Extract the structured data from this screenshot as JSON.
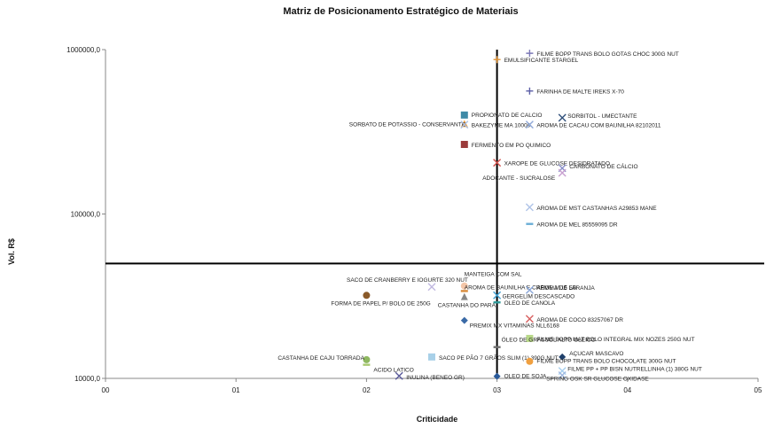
{
  "chart_data": {
    "type": "scatter",
    "title": "Matriz de  Posicionamento  Estratégico de Materiais",
    "xlabel": "Criticidade",
    "ylabel": "Vol. R$",
    "xlim": [
      0,
      5
    ],
    "ylim": [
      10000,
      1000000
    ],
    "y_scale": "log",
    "grid": false,
    "x_ticks": [
      "00",
      "01",
      "02",
      "03",
      "04",
      "05"
    ],
    "y_ticks": [
      "10000,0",
      "100000,0",
      "1000000,0"
    ],
    "quadrant_lines": {
      "x": 3.0,
      "y": 50000
    },
    "points": [
      {
        "label": "FILME BOPP TRANS BOLO GOTAS CHOC 300G NUT",
        "x": 3.25,
        "y": 950000,
        "marker": "plus",
        "color": "#7b78b6"
      },
      {
        "label": "EMULSIFICANTE  STARGEL",
        "x": 3.0,
        "y": 870000,
        "marker": "plus",
        "color": "#e3912f"
      },
      {
        "label": "FARINHA DE MALTE IREKS X-70",
        "x": 3.25,
        "y": 560000,
        "marker": "plus",
        "color": "#5b5ea6"
      },
      {
        "label": "PROPIONATO DE CALCIO",
        "x": 2.75,
        "y": 400000,
        "marker": "square",
        "color": "#3f8aa6"
      },
      {
        "label": "SORBITOL - UMECTANTE",
        "x": 3.5,
        "y": 385000,
        "marker": "x",
        "color": "#2f4f7a"
      },
      {
        "label": "SORBATO DE POTASSIO - CONSERVANTE",
        "x": 2.75,
        "y": 355000,
        "marker": "triangle",
        "color": "#f0a040"
      },
      {
        "label": "BAKEZYME MA 10000",
        "x": 2.75,
        "y": 350000,
        "marker": "x",
        "color": "#a9bde0"
      },
      {
        "label": "AROMA DE CACAU COM BAUNILHA  82102011",
        "x": 3.25,
        "y": 350000,
        "marker": "x",
        "color": "#8fa8d8"
      },
      {
        "label": "FERMENTO EM PO QUIMICO",
        "x": 2.75,
        "y": 265000,
        "marker": "square",
        "color": "#9b3b3b"
      },
      {
        "label": "XAROPE DE GLUCOSE DESIDRATADO",
        "x": 3.0,
        "y": 205000,
        "marker": "x",
        "color": "#d0504a"
      },
      {
        "label": "CARBONATO DE CÁLCIO",
        "x": 3.5,
        "y": 190000,
        "marker": "x",
        "color": "#8a8fc8"
      },
      {
        "label": "ADOÇANTE - SUCRALOSE",
        "x": 3.5,
        "y": 178000,
        "marker": "x",
        "color": "#c8a0d0"
      },
      {
        "label": "AROMA DE MST CASTANHAS A29853 MANE",
        "x": 3.25,
        "y": 110000,
        "marker": "x",
        "color": "#b0c4e8"
      },
      {
        "label": "AROMA DE MEL 85559095 DR",
        "x": 3.25,
        "y": 87000,
        "marker": "dash",
        "color": "#6aaed6"
      },
      {
        "label": "SACO DE CRANBERRY E IOGURTE 320 NUT",
        "x": 2.5,
        "y": 36000,
        "marker": "x",
        "color": "#c0b8e0"
      },
      {
        "label": "MANTEIGA  COM SAL",
        "x": 2.75,
        "y": 36500,
        "marker": "circle",
        "color": "#f4c6a8"
      },
      {
        "label": "AROMA DE BAUNILHA  E CREME 1615 SB",
        "x": 2.75,
        "y": 34000,
        "marker": "dash",
        "color": "#d88a3a"
      },
      {
        "label": "AROMA DE LARANJA",
        "x": 3.25,
        "y": 34500,
        "marker": "x",
        "color": "#8aa6d8"
      },
      {
        "label": "FORMA DE PAPEL P/ BOLO DE 250G",
        "x": 2.0,
        "y": 32000,
        "marker": "circle",
        "color": "#8a5a2a"
      },
      {
        "label": "GERGELIM DESCASCADO",
        "x": 3.0,
        "y": 32000,
        "marker": "x",
        "color": "#3f9fd0"
      },
      {
        "label": "CASTANHA DO PARÁ",
        "x": 2.75,
        "y": 31500,
        "marker": "triangle",
        "color": "#888888"
      },
      {
        "label": "OLEO DE CANOLA",
        "x": 3.0,
        "y": 29000,
        "marker": "dash",
        "color": "#2f9a9a"
      },
      {
        "label": "AROMA DE COCO 83257067 DR",
        "x": 3.25,
        "y": 23000,
        "marker": "x",
        "color": "#d86060"
      },
      {
        "label": "PREMIX MX VITAMINAS  NLL6168",
        "x": 2.75,
        "y": 22500,
        "marker": "diamond",
        "color": "#3a6aa6"
      },
      {
        "label": "FILME BOPP MAT BOLO INTEGRAL MIX NOZES 250G NUT",
        "x": 3.25,
        "y": 17500,
        "marker": "square",
        "color": "#b8d888"
      },
      {
        "label": "ÓLEO DE GRASSOL ALTO OLEICO",
        "x": 3.0,
        "y": 15500,
        "marker": "dash",
        "color": "#707070"
      },
      {
        "label": "AÇUCAR MASCAVO",
        "x": 3.5,
        "y": 13500,
        "marker": "diamond",
        "color": "#1f3f6a"
      },
      {
        "label": "SACO PE PÃO 7 GRÃOS SLIM (1) 390G NUT",
        "x": 2.5,
        "y": 13500,
        "marker": "square",
        "color": "#a8d0e8"
      },
      {
        "label": "CASTANHA DE CAJU TORRADA",
        "x": 2.0,
        "y": 13000,
        "marker": "circle",
        "color": "#8fb860"
      },
      {
        "label": "FILME BOPP TRANS BOLO CHOCOLATE 300G NUT",
        "x": 3.25,
        "y": 12700,
        "marker": "circle",
        "color": "#f0a040"
      },
      {
        "label": "ACIDO LATICO",
        "x": 2.0,
        "y": 12100,
        "marker": "dash",
        "color": "#a8c870"
      },
      {
        "label": "FILME  PP + PP BISN NUTRELLINHA (1) 380G NUT",
        "x": 3.5,
        "y": 11100,
        "marker": "x",
        "color": "#a8d0f0"
      },
      {
        "label": "SPRING OSK SR GLUCOSE OXIDASE",
        "x": 3.5,
        "y": 10450,
        "marker": "x",
        "color": "#9fb8e0"
      },
      {
        "label": "INULINA  (BENEO GR)",
        "x": 2.25,
        "y": 10350,
        "marker": "x",
        "color": "#5a5a9a"
      },
      {
        "label": "OLEO DE SOJA",
        "x": 3.0,
        "y": 10300,
        "marker": "diamond",
        "color": "#2a5a9a"
      }
    ]
  }
}
